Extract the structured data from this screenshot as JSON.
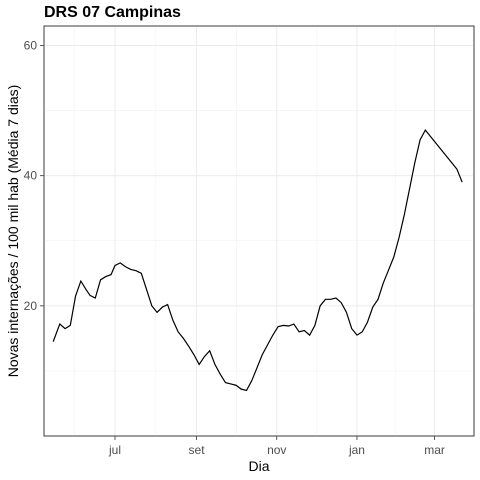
{
  "chart_data": {
    "type": "line",
    "title": "DRS 07 Campinas",
    "xlabel": "Dia",
    "ylabel": "Novas internações / 100 mil hab (Média 7 dias)",
    "x_range": [
      "2021-05-08",
      "2022-03-31"
    ],
    "ylim": [
      0,
      63
    ],
    "x_ticks": [
      {
        "date": "2021-07-01",
        "label": "jul"
      },
      {
        "date": "2021-09-01",
        "label": "set"
      },
      {
        "date": "2021-11-01",
        "label": "nov"
      },
      {
        "date": "2022-01-01",
        "label": "jan"
      },
      {
        "date": "2022-03-01",
        "label": "mar"
      }
    ],
    "y_ticks": [
      20,
      40,
      60
    ],
    "grid": true,
    "legend": "none",
    "line_color": "#000000",
    "series": [
      {
        "x": [
          "2021-05-15",
          "2021-05-20",
          "2021-05-24",
          "2021-05-28",
          "2021-06-01",
          "2021-06-05",
          "2021-06-09",
          "2021-06-12",
          "2021-06-16",
          "2021-06-20",
          "2021-06-24",
          "2021-06-28",
          "2021-07-01",
          "2021-07-05",
          "2021-07-09",
          "2021-07-13",
          "2021-07-17",
          "2021-07-21",
          "2021-07-25",
          "2021-07-29",
          "2021-08-02",
          "2021-08-06",
          "2021-08-10",
          "2021-08-14",
          "2021-08-18",
          "2021-08-22",
          "2021-08-26",
          "2021-08-30",
          "2021-09-03",
          "2021-09-07",
          "2021-09-11",
          "2021-09-15",
          "2021-09-19",
          "2021-09-23",
          "2021-09-27",
          "2021-10-01",
          "2021-10-05",
          "2021-10-09",
          "2021-10-13",
          "2021-10-17",
          "2021-10-21",
          "2021-10-25",
          "2021-10-29",
          "2021-11-02",
          "2021-11-06",
          "2021-11-10",
          "2021-11-14",
          "2021-11-18",
          "2021-11-22",
          "2021-11-26",
          "2021-11-30",
          "2021-12-04",
          "2021-12-08",
          "2021-12-12",
          "2021-12-16",
          "2021-12-20",
          "2021-12-24",
          "2021-12-28",
          "2022-01-01",
          "2022-01-05",
          "2022-01-09",
          "2022-01-13",
          "2022-01-17",
          "2022-01-21",
          "2022-01-25",
          "2022-01-29",
          "2022-02-02",
          "2022-02-06",
          "2022-02-10",
          "2022-02-14",
          "2022-02-18",
          "2022-02-22",
          "2022-02-26",
          "2022-03-02",
          "2022-03-06",
          "2022-03-10",
          "2022-03-14",
          "2022-03-18",
          "2022-03-20",
          "2022-03-22"
        ],
        "y": [
          14.5,
          17.2,
          16.5,
          17.0,
          21.5,
          23.8,
          22.5,
          21.6,
          21.2,
          24.0,
          24.5,
          24.8,
          26.2,
          26.6,
          26.0,
          25.6,
          25.4,
          25.0,
          22.5,
          20.0,
          19.0,
          19.8,
          20.2,
          17.8,
          16.0,
          15.0,
          13.8,
          12.5,
          11.0,
          12.2,
          13.1,
          11.0,
          9.5,
          8.2,
          8.0,
          7.8,
          7.2,
          7.0,
          8.5,
          10.5,
          12.5,
          14.0,
          15.5,
          16.8,
          17.0,
          16.9,
          17.2,
          16.0,
          16.2,
          15.5,
          17.0,
          20.0,
          21.0,
          21.0,
          21.2,
          20.5,
          19.0,
          16.5,
          15.5,
          16.0,
          17.5,
          19.8,
          21.0,
          23.5,
          25.5,
          27.5,
          30.5,
          34.0,
          38.0,
          42.0,
          45.5,
          47.0,
          46.0,
          45.0,
          44.0,
          43.0,
          42.0,
          41.0,
          40.0,
          39.0
        ]
      }
    ]
  }
}
